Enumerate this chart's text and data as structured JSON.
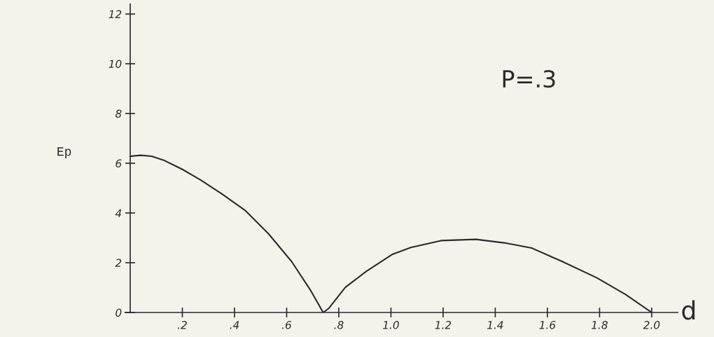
{
  "chart_data": {
    "type": "line",
    "xlabel": "d",
    "ylabel": "Ep",
    "annotations": [
      "P=.3"
    ],
    "x": [
      0,
      0.04,
      0.082,
      0.127,
      0.199,
      0.27,
      0.351,
      0.44,
      0.53,
      0.619,
      0.69,
      0.74,
      0.762,
      0.825,
      0.905,
      1.004,
      1.076,
      1.192,
      1.326,
      1.434,
      1.54,
      1.657,
      1.79,
      1.899,
      2.0
    ],
    "series": [
      {
        "color": "#2a2a2a",
        "values": [
          6.28,
          6.32,
          6.28,
          6.13,
          5.76,
          5.33,
          4.77,
          4.11,
          3.17,
          2.05,
          0.92,
          0,
          0.17,
          1.01,
          1.65,
          2.33,
          2.61,
          2.89,
          2.94,
          2.8,
          2.59,
          2.05,
          1.39,
          0.73,
          0
        ]
      }
    ],
    "xlim": [
      -0.02,
      2.1
    ],
    "ylim": [
      0,
      12.4
    ],
    "xticks": [
      {
        "value": 0.2,
        "label": ".2"
      },
      {
        "value": 0.4,
        "label": ".4"
      },
      {
        "value": 0.6,
        "label": ".6"
      },
      {
        "value": 0.8,
        "label": ".8"
      },
      {
        "value": 1.0,
        "label": "1.0"
      },
      {
        "value": 1.2,
        "label": "1.2"
      },
      {
        "value": 1.4,
        "label": "1.4"
      },
      {
        "value": 1.6,
        "label": "1.6"
      },
      {
        "value": 1.8,
        "label": "1.8"
      },
      {
        "value": 2.0,
        "label": "2.0"
      }
    ],
    "yticks": [
      0,
      2,
      4,
      6,
      8,
      10,
      12
    ],
    "grid": false,
    "legend": false,
    "marker": "none",
    "line_style": "solid"
  }
}
